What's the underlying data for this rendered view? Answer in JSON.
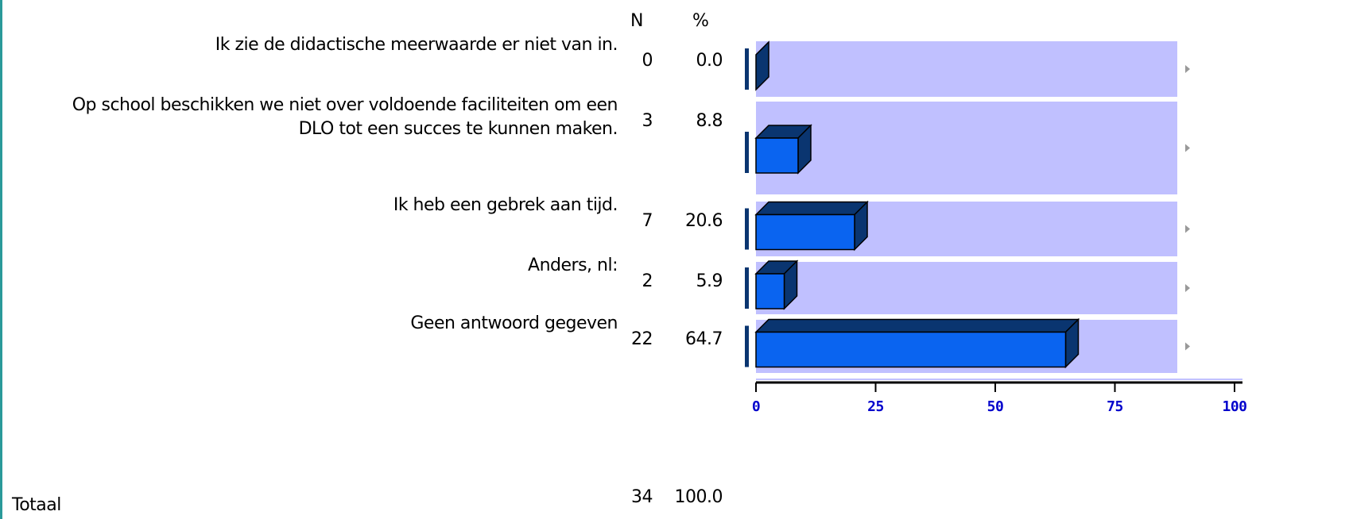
{
  "chart_data": {
    "type": "bar",
    "n_header": "N",
    "percent_header": "%",
    "categories": [
      "Ik zie de didactische meerwaarde er niet van in.",
      "Op school beschikken we niet over voldoende faciliteiten om een DLO tot een succes te kunnen maken.",
      "Ik heb een gebrek aan tijd.",
      "Anders, nl:",
      "Geen antwoord gegeven"
    ],
    "n_values": [
      0,
      3,
      7,
      2,
      22
    ],
    "values": [
      0,
      8.8,
      20.6,
      5.9,
      64.7
    ],
    "value_labels": [
      "0.0",
      "8.8",
      "20.6",
      "5.9",
      "64.7"
    ],
    "color": "#0a64f0",
    "edge_color": "#0a3570",
    "plot_background": "#c0c0ff",
    "tick_label_color": "#0000cc",
    "xlim": [
      0,
      100
    ],
    "xticks": [
      0,
      25,
      50,
      75,
      100
    ],
    "total": {
      "label": "Totaal",
      "n": 34,
      "percent": 100,
      "percent_label": "100.0"
    }
  }
}
